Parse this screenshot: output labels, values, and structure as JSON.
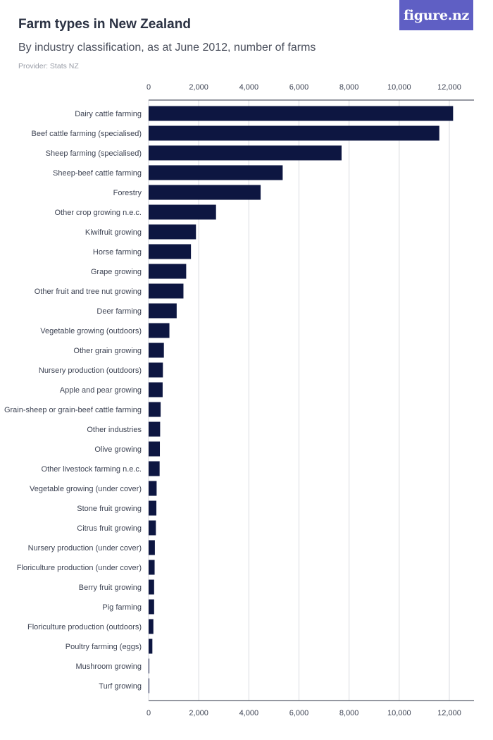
{
  "header": {
    "title": "Farm types in New Zealand",
    "subtitle": "By industry classification, as at June 2012, number of farms",
    "provider": "Provider: Stats NZ",
    "logo_text": "figure.nz"
  },
  "colors": {
    "bar": "#0d1641",
    "grid": "#d9dbe0",
    "axis": "#2b3243",
    "logo_bg": "#5f5fc4"
  },
  "chart_data": {
    "type": "bar",
    "orientation": "horizontal",
    "title": "Farm types in New Zealand",
    "subtitle": "By industry classification, as at June 2012, number of farms",
    "xlim": [
      0,
      12000
    ],
    "x_ticks": [
      "0",
      "2,000",
      "4,000",
      "6,000",
      "8,000",
      "10,000",
      "12,000"
    ],
    "grid": true,
    "categories": [
      "Dairy cattle farming",
      "Beef cattle farming (specialised)",
      "Sheep farming (specialised)",
      "Sheep-beef cattle farming",
      "Forestry",
      "Other crop growing n.e.c.",
      "Kiwifruit growing",
      "Horse farming",
      "Grape growing",
      "Other fruit and tree nut growing",
      "Deer farming",
      "Vegetable growing (outdoors)",
      "Other grain growing",
      "Nursery production (outdoors)",
      "Apple and pear growing",
      "Grain-sheep or grain-beef cattle farming",
      "Other industries",
      "Olive growing",
      "Other livestock farming n.e.c.",
      "Vegetable growing (under cover)",
      "Stone fruit growing",
      "Citrus fruit growing",
      "Nursery production (under cover)",
      "Floriculture production (under cover)",
      "Berry fruit growing",
      "Pig farming",
      "Floriculture production (outdoors)",
      "Poultry farming (eggs)",
      "Mushroom growing",
      "Turf growing"
    ],
    "values": [
      12150,
      11600,
      7700,
      5350,
      4470,
      2690,
      1890,
      1690,
      1500,
      1390,
      1120,
      830,
      610,
      570,
      560,
      480,
      460,
      450,
      440,
      320,
      310,
      290,
      250,
      240,
      220,
      220,
      190,
      150,
      20,
      10
    ]
  }
}
